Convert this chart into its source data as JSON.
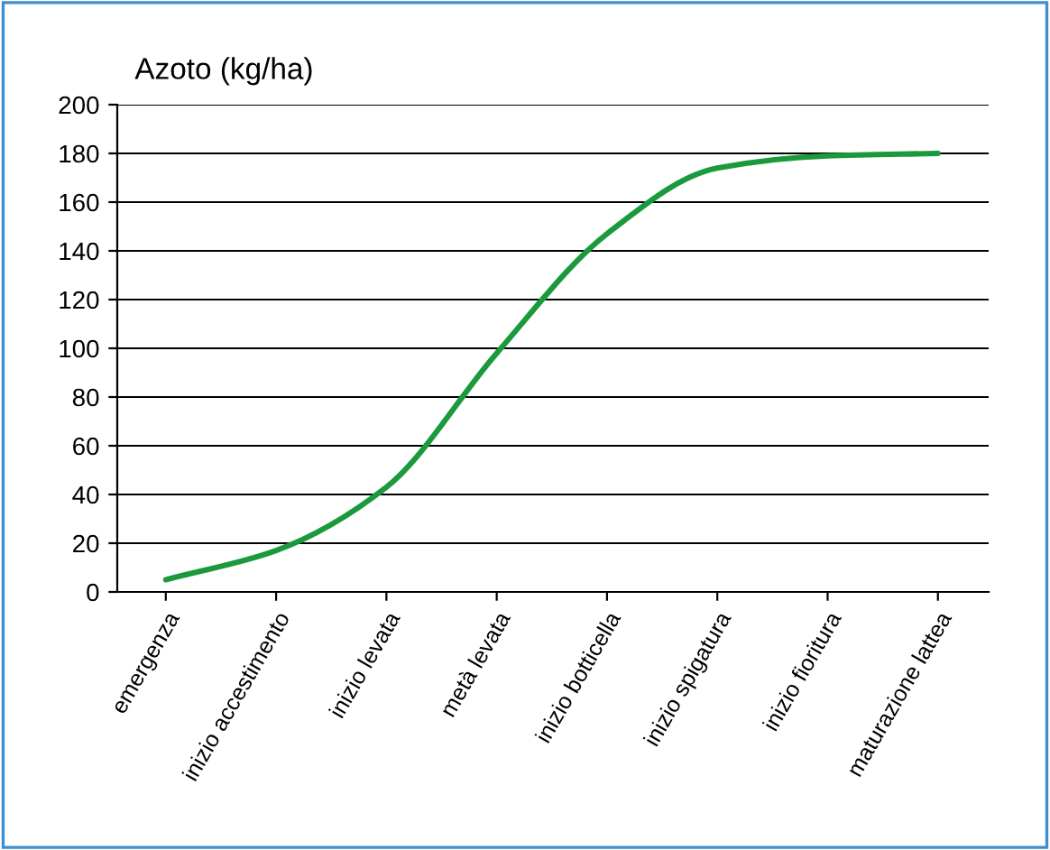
{
  "chart_data": {
    "type": "line",
    "ylabel": "Azoto (kg/ha)",
    "categories": [
      "emergenza",
      "inizio accestimento",
      "inizio levata",
      "metà levata",
      "inizio botticella",
      "inizio spigatura",
      "inizio fioritura",
      "maturazione lattea"
    ],
    "series": [
      {
        "color": "#1a9a3c",
        "values": [
          5,
          17,
          43,
          98,
          147,
          174,
          179,
          180
        ]
      }
    ],
    "ylim": [
      0,
      200
    ],
    "yticks": [
      0,
      20,
      40,
      60,
      80,
      100,
      120,
      140,
      160,
      180,
      200
    ],
    "grid": "y",
    "legend": false,
    "marker": "none",
    "line_style": "solid"
  }
}
